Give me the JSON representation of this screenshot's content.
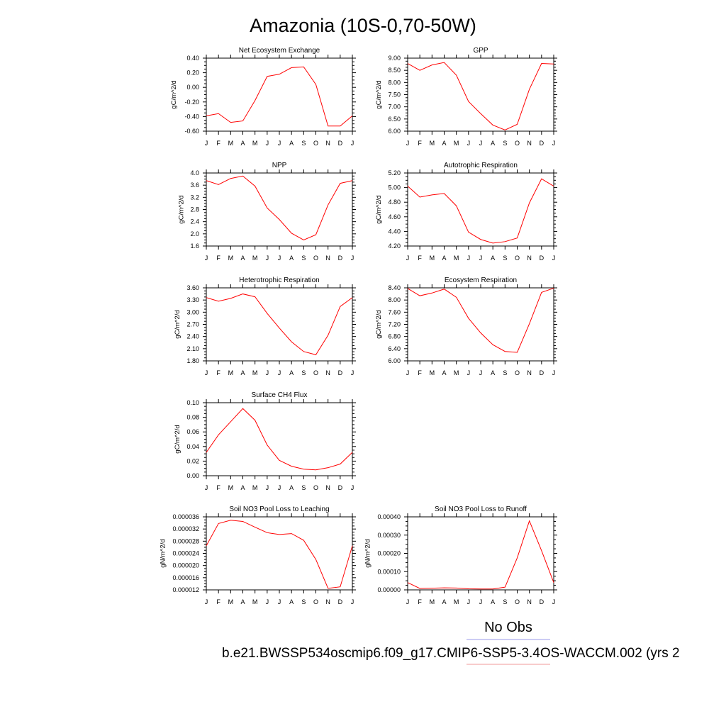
{
  "page": {
    "title": "Amazonia (10S-0,70-50W)"
  },
  "legend": {
    "obs_label": "No Obs",
    "obs_color": "#9a9ae8",
    "case_label": "b.e21.BWSSP534oscmip6.f09_g17.CMIP6-SSP5-3.4OS-WACCM.002 (yrs 2",
    "case_color": "#f09a9a"
  },
  "line_color": "#ff0000",
  "chart_data": [
    {
      "type": "line",
      "title": "Net Ecosystem Exchange",
      "ylabel": "gC/m^2/d",
      "categories": [
        "J",
        "F",
        "M",
        "A",
        "M",
        "J",
        "J",
        "A",
        "S",
        "O",
        "N",
        "D",
        "J"
      ],
      "ylim": [
        -0.6,
        0.4
      ],
      "yticks": [
        "0.40",
        "0.20",
        "0.00",
        "-0.20",
        "-0.40",
        "-0.60"
      ],
      "values": [
        -0.39,
        -0.36,
        -0.48,
        -0.46,
        -0.18,
        0.15,
        0.18,
        0.27,
        0.28,
        0.04,
        -0.53,
        -0.53,
        -0.39
      ]
    },
    {
      "type": "line",
      "title": "GPP",
      "ylabel": "gC/m^2/d",
      "categories": [
        "J",
        "F",
        "M",
        "A",
        "M",
        "J",
        "J",
        "A",
        "S",
        "O",
        "N",
        "D",
        "J"
      ],
      "ylim": [
        6.0,
        9.0
      ],
      "yticks": [
        "9.00",
        "8.50",
        "8.00",
        "7.50",
        "7.00",
        "6.50",
        "6.00"
      ],
      "values": [
        8.78,
        8.5,
        8.72,
        8.82,
        8.3,
        7.22,
        6.72,
        6.25,
        6.05,
        6.28,
        7.72,
        8.78,
        8.76
      ]
    },
    {
      "type": "line",
      "title": "NPP",
      "ylabel": "gC/m^2/d",
      "categories": [
        "J",
        "F",
        "M",
        "A",
        "M",
        "J",
        "J",
        "A",
        "S",
        "O",
        "N",
        "D",
        "J"
      ],
      "ylim": [
        1.6,
        4.0
      ],
      "yticks": [
        "4.0",
        "3.6",
        "3.2",
        "2.8",
        "2.4",
        "2.0",
        "1.6"
      ],
      "values": [
        3.75,
        3.62,
        3.82,
        3.9,
        3.57,
        2.85,
        2.47,
        2.02,
        1.8,
        1.97,
        2.95,
        3.66,
        3.75
      ]
    },
    {
      "type": "line",
      "title": "Autotrophic Respiration",
      "ylabel": "gC/m^2/d",
      "categories": [
        "J",
        "F",
        "M",
        "A",
        "M",
        "J",
        "J",
        "A",
        "S",
        "O",
        "N",
        "D",
        "J"
      ],
      "ylim": [
        4.2,
        5.2
      ],
      "yticks": [
        "5.20",
        "5.00",
        "4.80",
        "4.60",
        "4.40",
        "4.20"
      ],
      "values": [
        5.02,
        4.87,
        4.9,
        4.92,
        4.75,
        4.39,
        4.29,
        4.24,
        4.26,
        4.31,
        4.79,
        5.12,
        5.02
      ]
    },
    {
      "type": "line",
      "title": "Heterotrophic Respiration",
      "ylabel": "gC/m^2/d",
      "categories": [
        "J",
        "F",
        "M",
        "A",
        "M",
        "J",
        "J",
        "A",
        "S",
        "O",
        "N",
        "D",
        "J"
      ],
      "ylim": [
        1.8,
        3.6
      ],
      "yticks": [
        "3.60",
        "3.30",
        "3.00",
        "2.70",
        "2.40",
        "2.10",
        "1.80"
      ],
      "values": [
        3.36,
        3.27,
        3.34,
        3.45,
        3.38,
        2.97,
        2.61,
        2.27,
        2.03,
        1.95,
        2.43,
        3.14,
        3.36
      ]
    },
    {
      "type": "line",
      "title": "Ecosystem Respiration",
      "ylabel": "gC/m^2/d",
      "categories": [
        "J",
        "F",
        "M",
        "A",
        "M",
        "J",
        "J",
        "A",
        "S",
        "O",
        "N",
        "D",
        "J"
      ],
      "ylim": [
        6.0,
        8.4
      ],
      "yticks": [
        "8.40",
        "8.00",
        "7.60",
        "7.20",
        "6.80",
        "6.40",
        "6.00"
      ],
      "values": [
        8.38,
        8.14,
        8.23,
        8.36,
        8.09,
        7.4,
        6.92,
        6.53,
        6.31,
        6.28,
        7.22,
        8.25,
        8.39
      ]
    },
    {
      "type": "line",
      "title": "Surface CH4 Flux",
      "ylabel": "gC/m^2/d",
      "categories": [
        "J",
        "F",
        "M",
        "A",
        "M",
        "J",
        "J",
        "A",
        "S",
        "O",
        "N",
        "D",
        "J"
      ],
      "ylim": [
        0.0,
        0.1
      ],
      "yticks": [
        "0.10",
        "0.08",
        "0.06",
        "0.04",
        "0.02",
        "0.00"
      ],
      "values": [
        0.032,
        0.056,
        0.074,
        0.092,
        0.076,
        0.042,
        0.021,
        0.013,
        0.009,
        0.008,
        0.011,
        0.016,
        0.032
      ]
    },
    {
      "type": "line",
      "title": "Soil NO3 Pool Loss to Leaching",
      "ylabel": "gN/m^2/d",
      "categories": [
        "J",
        "F",
        "M",
        "A",
        "M",
        "J",
        "J",
        "A",
        "S",
        "O",
        "N",
        "D",
        "J"
      ],
      "ylim": [
        1.2e-05,
        3.6e-05
      ],
      "yticks": [
        "0.000036",
        "0.000032",
        "0.000028",
        "0.000024",
        "0.000020",
        "0.000016",
        "0.000012"
      ],
      "values": [
        2.65e-05,
        3.38e-05,
        3.49e-05,
        3.45e-05,
        3.26e-05,
        3.08e-05,
        3.02e-05,
        3.05e-05,
        2.83e-05,
        2.2e-05,
        1.25e-05,
        1.3e-05,
        2.65e-05
      ]
    },
    {
      "type": "line",
      "title": "Soil NO3 Pool Loss to Runoff",
      "ylabel": "gN/m^2/d",
      "categories": [
        "J",
        "F",
        "M",
        "A",
        "M",
        "J",
        "J",
        "A",
        "S",
        "O",
        "N",
        "D",
        "J"
      ],
      "ylim": [
        0.0,
        0.0004
      ],
      "yticks": [
        "0.00040",
        "0.00030",
        "0.00020",
        "0.00010",
        "0.00000"
      ],
      "values": [
        4e-05,
        8e-06,
        9e-06,
        1.1e-05,
        1e-05,
        6e-06,
        5e-06,
        5e-06,
        1.5e-05,
        0.000175,
        0.000378,
        0.000215,
        4e-05
      ]
    }
  ]
}
